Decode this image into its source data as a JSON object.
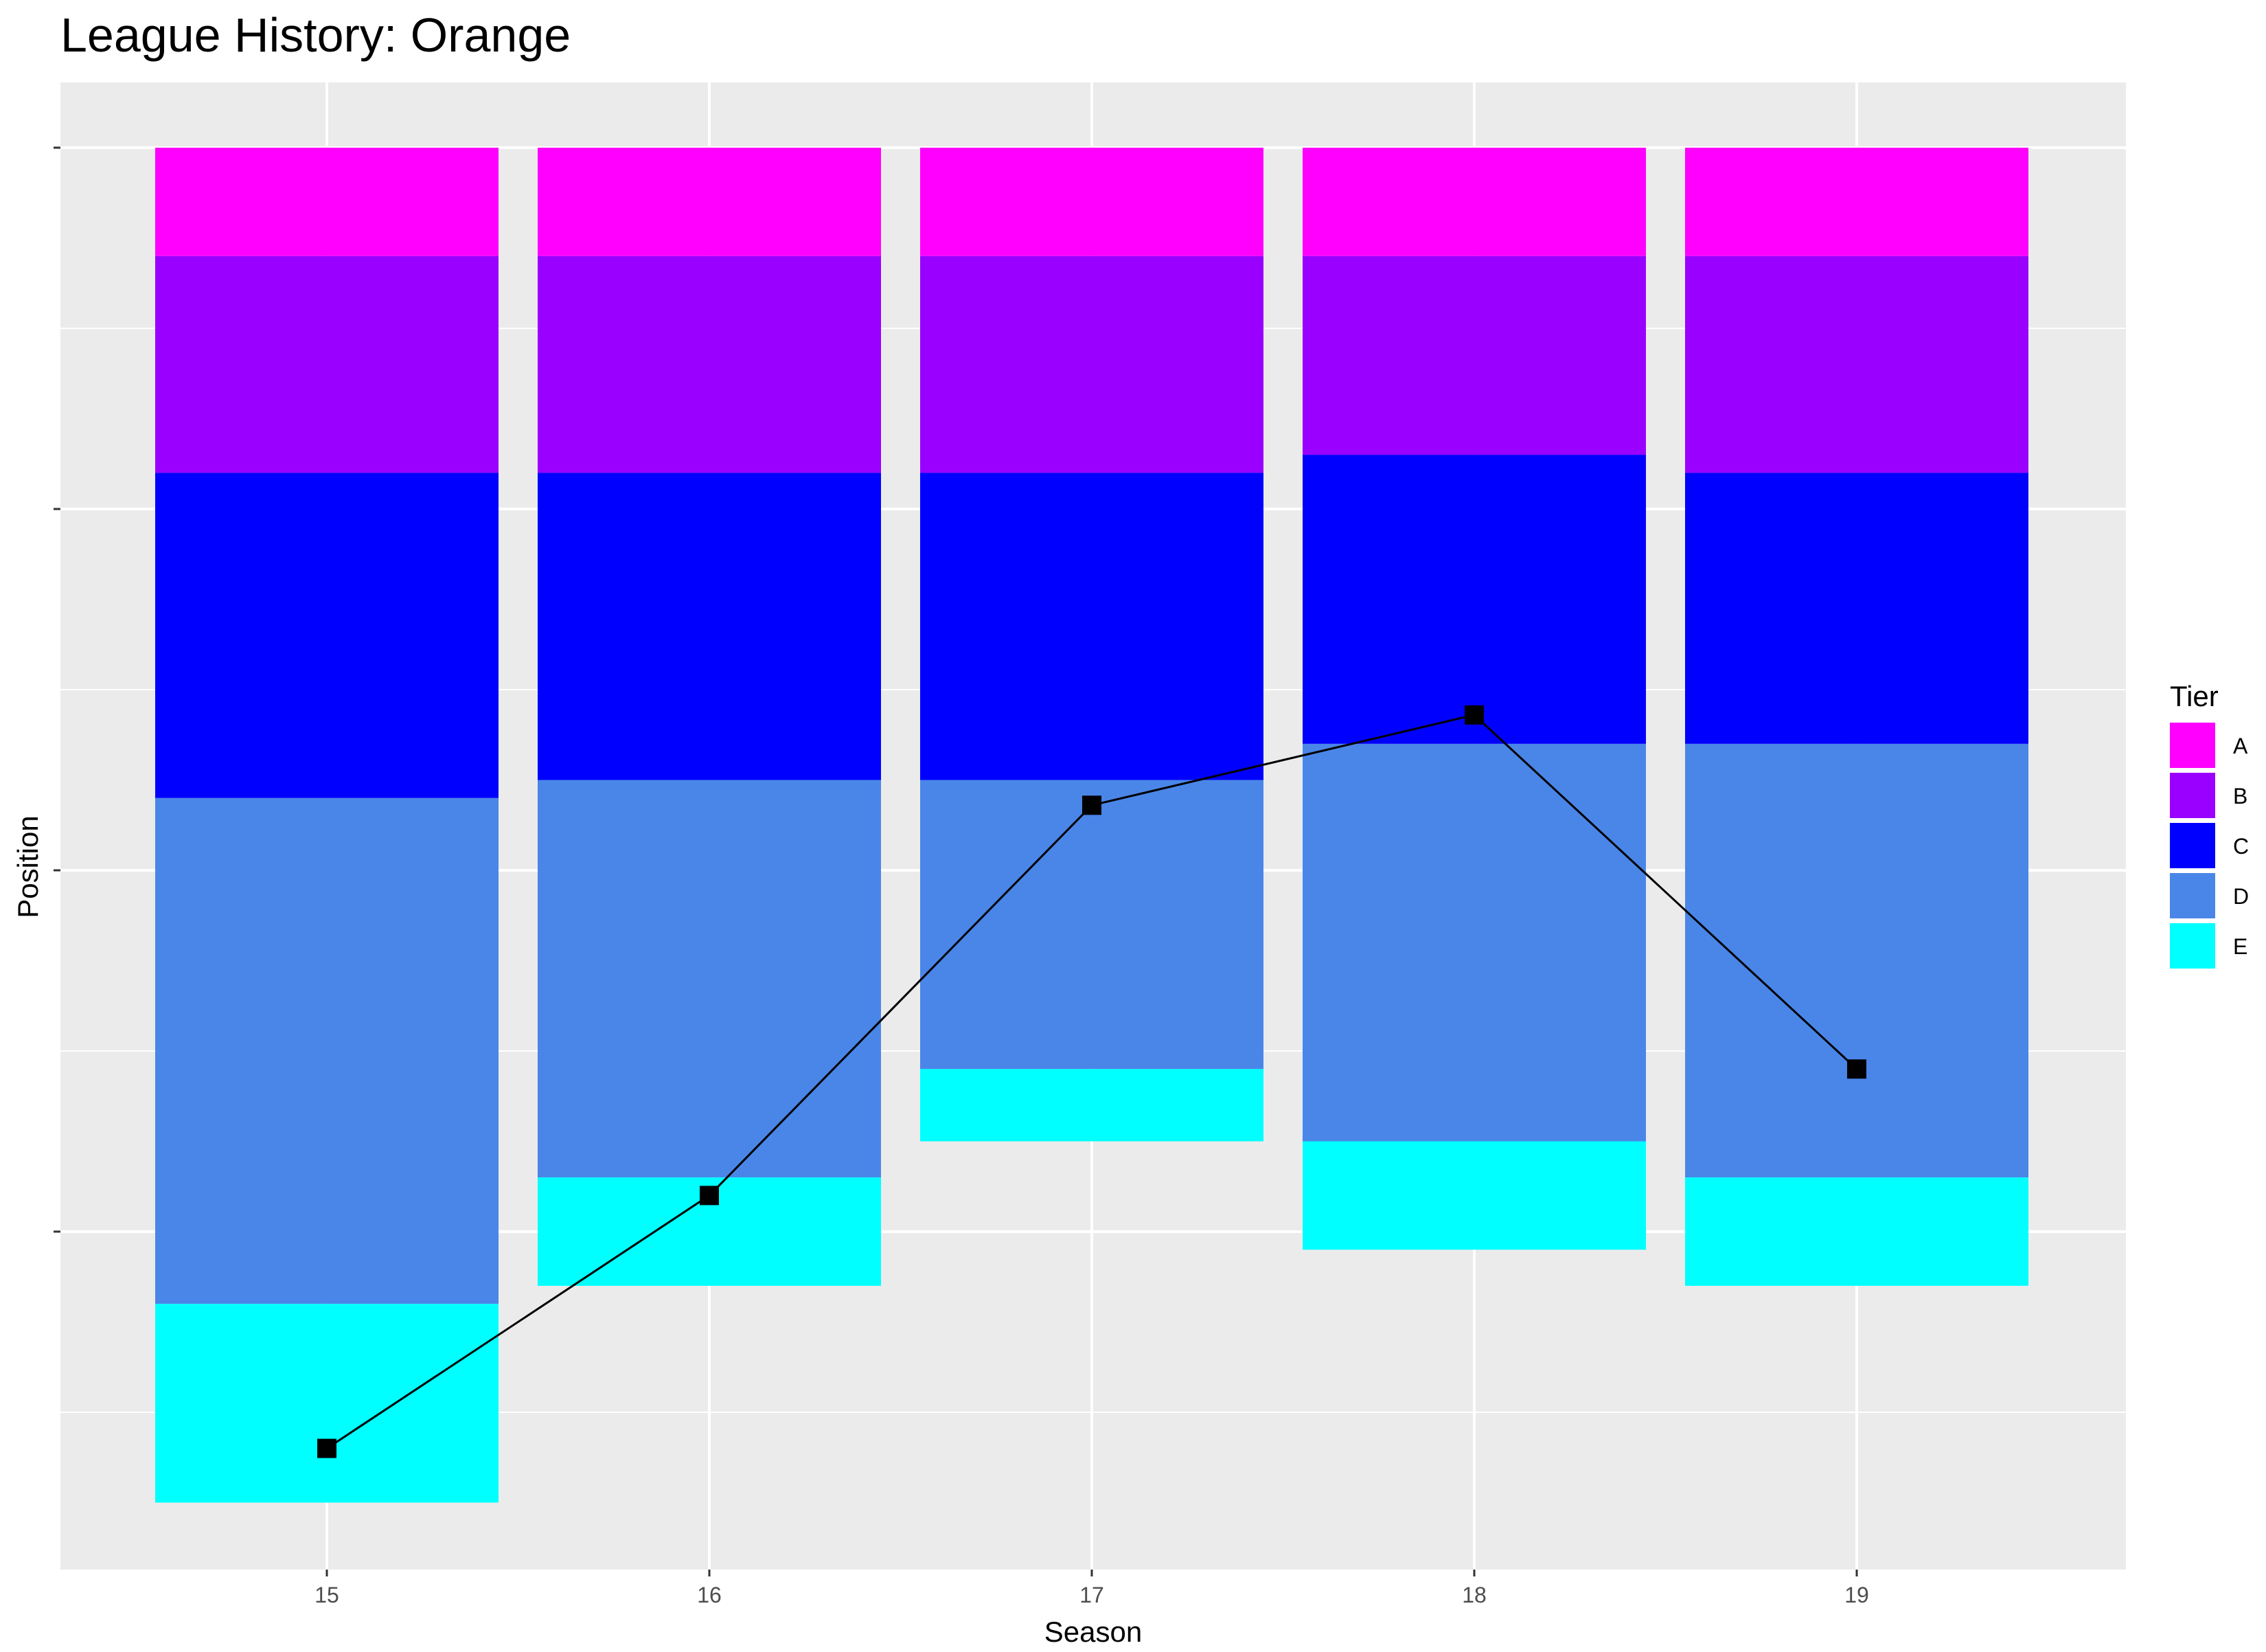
{
  "chart_data": {
    "type": "bar",
    "title": "League History: Orange",
    "xlabel": "Season",
    "ylabel": "Position",
    "categories": [
      "15",
      "16",
      "17",
      "18",
      "19"
    ],
    "ylim": [
      0,
      39
    ],
    "y_reversed": true,
    "grid": true,
    "legend": {
      "title": "Tier",
      "placement": "right"
    },
    "series": [
      {
        "name": "A",
        "color": "#FF00FF",
        "values": [
          3,
          3,
          3,
          3,
          3
        ]
      },
      {
        "name": "B",
        "color": "#9900FF",
        "values": [
          6,
          6,
          6,
          5.5,
          6
        ]
      },
      {
        "name": "C",
        "color": "#0000FF",
        "values": [
          9,
          8.5,
          8.5,
          8,
          7.5
        ]
      },
      {
        "name": "D",
        "color": "#4A86E8",
        "values": [
          14,
          11,
          8,
          11,
          12
        ]
      },
      {
        "name": "E",
        "color": "#00FFFF",
        "values": [
          5.5,
          3,
          2,
          3,
          3
        ]
      }
    ],
    "line": {
      "name": "Position",
      "color": "#000000",
      "values": [
        36,
        29,
        18.2,
        15.7,
        25.5
      ]
    }
  }
}
